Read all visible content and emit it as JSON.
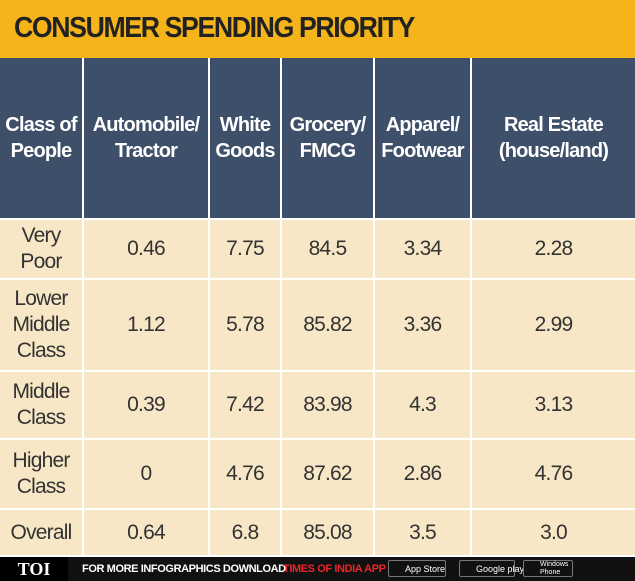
{
  "header": {
    "title": "CONSUMER SPENDING PRIORITY"
  },
  "table": {
    "columns": [
      "Class of\nPeople",
      "Automobile/\nTractor",
      "White\nGoods",
      "Grocery/\nFMCG",
      "Apparel/\nFootwear",
      "Real Estate\n(house/land)"
    ],
    "rows": [
      [
        "Very\nPoor",
        "0.46",
        "7.75",
        "84.5",
        "3.34",
        "2.28"
      ],
      [
        "Lower\nMiddle\nClass",
        "1.12",
        "5.78",
        "85.82",
        "3.36",
        "2.99"
      ],
      [
        "Middle\nClass",
        "0.39",
        "7.42",
        "83.98",
        "4.3",
        "3.13"
      ],
      [
        "Higher\nClass",
        "0",
        "4.76",
        "87.62",
        "2.86",
        "4.76"
      ],
      [
        "Overall",
        "0.64",
        "6.8",
        "85.08",
        "3.5",
        "3.0"
      ]
    ]
  },
  "footer": {
    "brand": "TOI",
    "promo": "FOR MORE  INFOGRAPHICS DOWNLOAD",
    "app": "TIMES OF INDIA  APP",
    "badges": [
      "App Store",
      "Google play",
      "Windows\nPhone"
    ]
  }
}
